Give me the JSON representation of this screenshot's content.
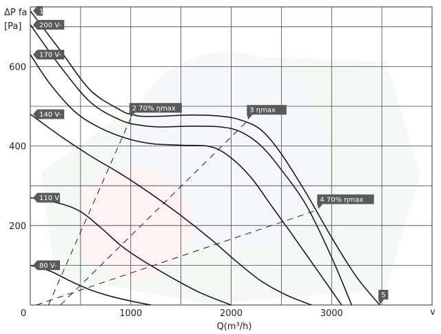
{
  "chart_data": {
    "type": "line",
    "title": "",
    "ylabel_line1": "ΔP fa",
    "ylabel_line2": "[Pa]",
    "xlabel": "Q(m³/h)",
    "x_corner_label": "v",
    "xlim": [
      0,
      4000
    ],
    "ylim": [
      0,
      750
    ],
    "x_ticks": [
      {
        "value": 0,
        "label": "0"
      },
      {
        "value": 1000,
        "label": "1000"
      },
      {
        "value": 2000,
        "label": "2000"
      },
      {
        "value": 3000,
        "label": "3000"
      }
    ],
    "y_ticks": [
      {
        "value": 200,
        "label": "200"
      },
      {
        "value": 400,
        "label": "400"
      },
      {
        "value": 600,
        "label": "600"
      }
    ],
    "grid": true,
    "grid_x_step": 500,
    "grid_y_step": 100,
    "series": [
      {
        "name": "1",
        "x": [
          0,
          300,
          600,
          900,
          1000,
          1100,
          1300,
          1600,
          1900,
          2100,
          2300,
          2500,
          2750,
          3000,
          3250,
          3480
        ],
        "y": [
          740,
          640,
          540,
          490,
          480,
          475,
          475,
          478,
          475,
          465,
          440,
          380,
          280,
          170,
          70,
          0
        ]
      },
      {
        "name": "200 V-",
        "x": [
          0,
          300,
          600,
          900,
          1100,
          1300,
          1600,
          1900,
          2100,
          2300,
          2500,
          2750,
          3000,
          3200
        ],
        "y": [
          705,
          600,
          510,
          465,
          452,
          448,
          450,
          448,
          435,
          400,
          340,
          250,
          120,
          0
        ]
      },
      {
        "name": "170 V-",
        "x": [
          0,
          200,
          450,
          700,
          950,
          1200,
          1500,
          1800,
          2000,
          2200,
          2400,
          2600,
          2850,
          3100
        ],
        "y": [
          630,
          555,
          485,
          445,
          420,
          406,
          402,
          398,
          370,
          320,
          250,
          180,
          90,
          0
        ]
      },
      {
        "name": "140 V-",
        "x": [
          0,
          300,
          600,
          900,
          1200,
          1500,
          1800,
          2050,
          2300,
          2550,
          2800
        ],
        "y": [
          480,
          425,
          375,
          330,
          280,
          225,
          165,
          110,
          60,
          25,
          0
        ]
      },
      {
        "name": "110 V",
        "x": [
          0,
          300,
          500,
          700,
          900,
          1100,
          1400,
          1700,
          2000
        ],
        "y": [
          270,
          255,
          235,
          195,
          150,
          115,
          70,
          30,
          0
        ]
      },
      {
        "name": "80 V-",
        "x": [
          0,
          200,
          400,
          600,
          800,
          1000,
          1200
        ],
        "y": [
          100,
          85,
          60,
          38,
          22,
          10,
          0
        ]
      }
    ],
    "efficiency_lines": [
      {
        "label": "2  70% ηmax",
        "x": [
          180,
          1000
        ],
        "y": [
          0,
          470
        ]
      },
      {
        "label": "3   ηmax",
        "x": [
          300,
          2170
        ],
        "y": [
          0,
          465
        ]
      },
      {
        "label": "4   70% ηmax",
        "x": [
          60,
          2870
        ],
        "y": [
          0,
          240
        ]
      }
    ],
    "tags": [
      {
        "text": "1",
        "x": 0,
        "y": 740,
        "side": "left"
      },
      {
        "text": "200 V-",
        "x": 0,
        "y": 705,
        "side": "left"
      },
      {
        "text": "170 V-",
        "x": 0,
        "y": 630,
        "side": "left"
      },
      {
        "text": "140 V-",
        "x": 0,
        "y": 480,
        "side": "left"
      },
      {
        "text": "110 V",
        "x": 0,
        "y": 270,
        "side": "left"
      },
      {
        "text": "80 V-",
        "x": 0,
        "y": 100,
        "side": "left"
      },
      {
        "text": "2  70% ηmax",
        "x": 1000,
        "y": 470,
        "side": "down"
      },
      {
        "text": "3   ηmax",
        "x": 2170,
        "y": 465,
        "side": "down"
      },
      {
        "text": "4   70% ηmax",
        "x": 2870,
        "y": 240,
        "side": "down"
      },
      {
        "text": "5",
        "x": 3480,
        "y": 0,
        "side": "down"
      }
    ],
    "colors": {
      "line": "#1a1a1a",
      "grid": "#444444",
      "tag_fill": "#5a5a5a",
      "tag_text": "#ffffff"
    }
  }
}
